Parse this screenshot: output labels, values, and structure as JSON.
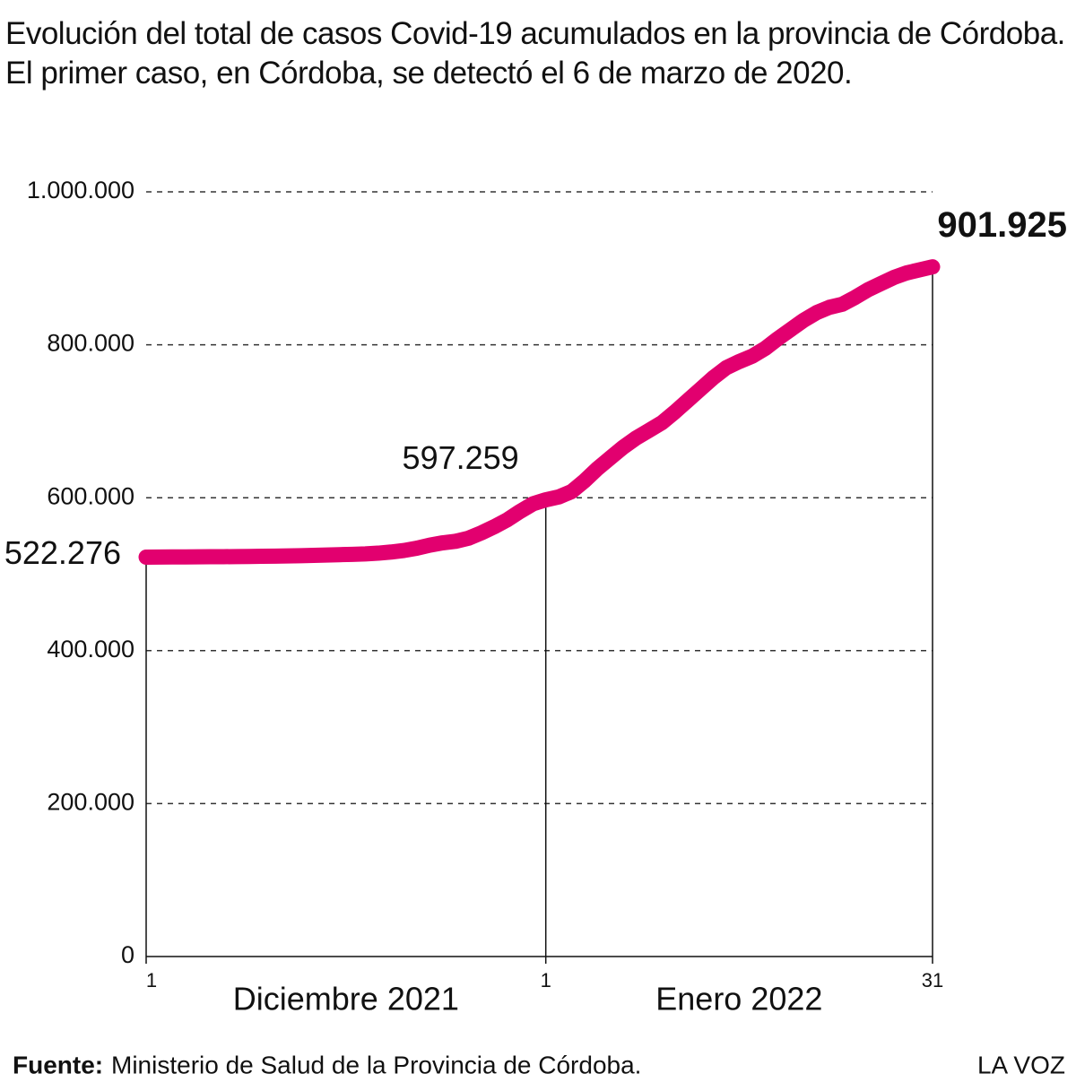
{
  "chart_data": {
    "type": "line",
    "title": "Evolución del total de casos Covid-19 acumulados en la provincia de Córdoba. El primer caso, en Córdoba, se detectó el 6 de marzo de 2020.",
    "x": [
      0,
      1,
      2,
      3,
      4,
      5,
      6,
      7,
      8,
      9,
      10,
      11,
      12,
      13,
      14,
      15,
      16,
      17,
      18,
      19,
      20,
      21,
      22,
      23,
      24,
      25,
      26,
      27,
      28,
      29,
      30,
      31,
      32,
      33,
      34,
      35,
      36,
      37,
      38,
      39,
      40,
      41,
      42,
      43,
      44,
      45,
      46,
      47,
      48,
      49,
      50,
      51,
      52,
      53,
      54,
      55,
      56,
      57,
      58,
      59,
      60,
      61
    ],
    "values": [
      522276,
      522400,
      522500,
      522600,
      522700,
      522800,
      522900,
      523000,
      523200,
      523400,
      523600,
      523900,
      524200,
      524600,
      525000,
      525500,
      526000,
      526500,
      527500,
      529000,
      531000,
      534000,
      538000,
      541000,
      543000,
      547000,
      554000,
      562000,
      571000,
      582000,
      592000,
      597259,
      601000,
      608000,
      622000,
      638000,
      652000,
      666000,
      678000,
      688000,
      698000,
      712000,
      727000,
      742000,
      757000,
      770000,
      778000,
      785000,
      795000,
      808000,
      820000,
      832000,
      842000,
      849000,
      853000,
      862000,
      872000,
      880000,
      888000,
      894000,
      898000,
      901925
    ],
    "value_labels": [
      "522.276",
      null,
      null,
      null,
      null,
      null,
      null,
      null,
      null,
      null,
      null,
      null,
      null,
      null,
      null,
      null,
      null,
      null,
      null,
      null,
      null,
      null,
      null,
      null,
      null,
      null,
      null,
      null,
      null,
      null,
      null,
      "597.259",
      null,
      null,
      null,
      null,
      null,
      null,
      null,
      null,
      null,
      null,
      null,
      null,
      null,
      null,
      null,
      null,
      null,
      null,
      null,
      null,
      null,
      null,
      null,
      null,
      null,
      null,
      null,
      null,
      null,
      "901.925"
    ],
    "color": "#e2006f",
    "xlim": [
      0,
      61
    ],
    "xticks": [
      {
        "value": 0,
        "label": "1"
      },
      {
        "value": 31,
        "label": "1"
      },
      {
        "value": 61,
        "label": "31"
      }
    ],
    "months": [
      "Diciembre 2021",
      "Enero 2022"
    ],
    "ylim": [
      0,
      1000000
    ],
    "yticks": [
      0,
      {
        "value": 200000,
        "label": "200.000"
      },
      {
        "value": 400000,
        "label": "400.000"
      },
      {
        "value": 600000,
        "label": "600.000"
      },
      {
        "value": 800000,
        "label": "800.000"
      },
      {
        "value": 1000000,
        "label": "1.000.000"
      }
    ],
    "grid": true,
    "source_label": "Fuente:",
    "source": "Ministerio de Salud de la Provincia de Córdoba.",
    "brand": "LA VOZ"
  }
}
